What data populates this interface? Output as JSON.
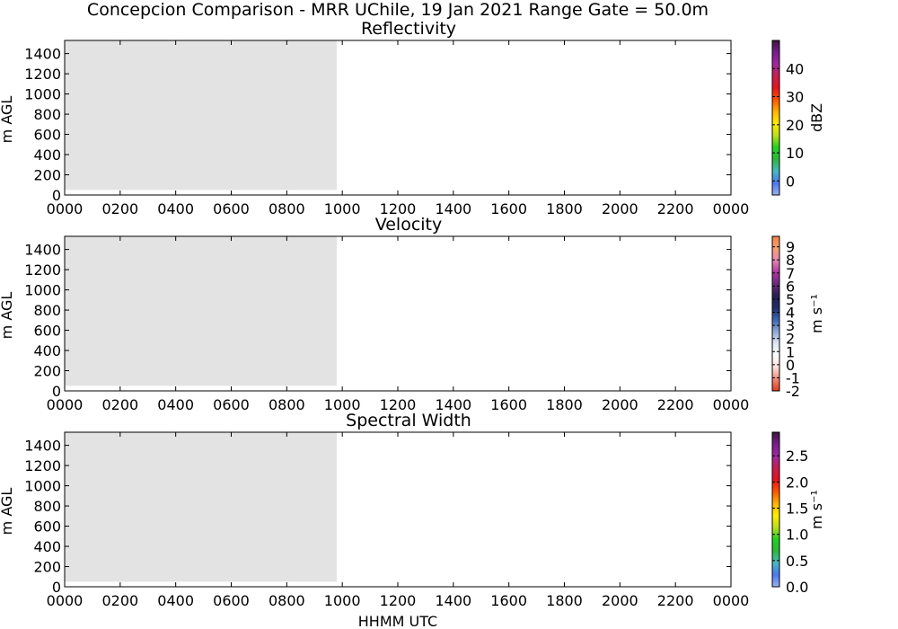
{
  "title": "Concepcion Comparison - MRR UChile, 19 Jan 2021 Range Gate = 50.0m",
  "xlabel": "HHMM UTC",
  "chart_data": [
    {
      "type": "heatmap",
      "title": "Reflectivity",
      "ylabel": "m AGL",
      "xlabel": "HHMM UTC",
      "x_ticks": [
        "0000",
        "0200",
        "0400",
        "0600",
        "0800",
        "1000",
        "1200",
        "1400",
        "1600",
        "1800",
        "2000",
        "2200",
        "0000"
      ],
      "xlim_hours": [
        0,
        24
      ],
      "y_ticks": [
        0,
        200,
        400,
        600,
        800,
        1000,
        1200,
        1400
      ],
      "ylim": [
        0,
        1530
      ],
      "data_coverage_hours": [
        0,
        9.8
      ],
      "data_coverage_height_m": [
        50,
        1530
      ],
      "colorbar": {
        "label": "dBZ",
        "ticks": [
          "0",
          "10",
          "20",
          "30",
          "40"
        ],
        "range": [
          -5,
          50
        ],
        "colors": [
          "#9fb2f0",
          "#4a78f2",
          "#48b8c2",
          "#2cb83c",
          "#22d222",
          "#bede1a",
          "#ffee00",
          "#ffb400",
          "#ff5500",
          "#e6141e",
          "#c81e50",
          "#a028a0",
          "#781e8c",
          "#3c143c"
        ]
      }
    },
    {
      "type": "heatmap",
      "title": "Velocity",
      "ylabel": "m s⁻¹",
      "xlabel": "HHMM UTC",
      "x_ticks": [
        "0000",
        "0200",
        "0400",
        "0600",
        "0800",
        "1000",
        "1200",
        "1400",
        "1600",
        "1800",
        "2000",
        "2200",
        "0000"
      ],
      "xlim_hours": [
        0,
        24
      ],
      "y_ticks": [
        0,
        200,
        400,
        600,
        800,
        1000,
        1200,
        1400
      ],
      "ylim": [
        0,
        1530
      ],
      "data_coverage_hours": [
        0,
        9.8
      ],
      "data_coverage_height_m": [
        50,
        1530
      ],
      "y_axis_title": "m AGL",
      "colorbar": {
        "label": "m s⁻¹",
        "ticks": [
          "-2",
          "-1",
          "0",
          "1",
          "2",
          "3",
          "4",
          "5",
          "6",
          "7",
          "8",
          "9"
        ],
        "range": [
          -2,
          9.8
        ],
        "colors": [
          "#e03c1e",
          "#f08a78",
          "#fce2dc",
          "#ffffff",
          "#dde6f4",
          "#8ea8d6",
          "#3c64b4",
          "#1e2d64",
          "#2a1e52",
          "#6a2a7a",
          "#b03aa0",
          "#e888b4",
          "#f6a072",
          "#f28248"
        ]
      }
    },
    {
      "type": "heatmap",
      "title": "Spectral Width",
      "ylabel": "m s⁻¹",
      "xlabel": "HHMM UTC",
      "x_ticks": [
        "0000",
        "0200",
        "0400",
        "0600",
        "0800",
        "1000",
        "1200",
        "1400",
        "1600",
        "1800",
        "2000",
        "2200",
        "0000"
      ],
      "xlim_hours": [
        0,
        24
      ],
      "y_ticks": [
        0,
        200,
        400,
        600,
        800,
        1000,
        1200,
        1400
      ],
      "ylim": [
        0,
        1530
      ],
      "data_coverage_hours": [
        0,
        9.8
      ],
      "data_coverage_height_m": [
        50,
        1530
      ],
      "y_axis_title": "m AGL",
      "colorbar": {
        "label": "m s⁻¹",
        "ticks": [
          "0.0",
          "0.5",
          "1.0",
          "1.5",
          "2.0",
          "2.5"
        ],
        "range": [
          0,
          2.95
        ],
        "colors": [
          "#9fb2f0",
          "#4a78f2",
          "#48b8c2",
          "#2cb83c",
          "#22d222",
          "#bede1a",
          "#ffee00",
          "#ffb400",
          "#ff5500",
          "#e6141e",
          "#c81e50",
          "#a028a0",
          "#781e8c",
          "#3c143c"
        ]
      }
    }
  ]
}
